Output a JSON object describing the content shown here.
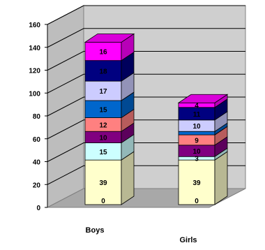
{
  "chart_data": {
    "type": "bar",
    "stacked": true,
    "three_d": true,
    "categories": [
      "Boys",
      "Girls"
    ],
    "ylim": [
      0,
      160
    ],
    "y_ticks": [
      "0",
      "20",
      "40",
      "60",
      "80",
      "100",
      "120",
      "140",
      "160"
    ],
    "grid": true,
    "legend": "none",
    "colors": [
      "#ffffcc",
      "#ccffff",
      "#800080",
      "#ff8080",
      "#0066cc",
      "#ccccff",
      "#000080",
      "#ff00ff"
    ],
    "series": [
      {
        "values": [
          0,
          0
        ],
        "labels": [
          "0",
          "0"
        ]
      },
      {
        "values": [
          39,
          39
        ],
        "labels": [
          "39",
          "39"
        ]
      },
      {
        "values": [
          15,
          3
        ],
        "labels": [
          "15",
          "3"
        ]
      },
      {
        "values": [
          10,
          10
        ],
        "labels": [
          "10",
          "10"
        ]
      },
      {
        "values": [
          12,
          9
        ],
        "labels": [
          "12",
          "9"
        ]
      },
      {
        "values": [
          15,
          3
        ],
        "labels": [
          "15",
          ""
        ]
      },
      {
        "values": [
          17,
          10
        ],
        "labels": [
          "17",
          "10"
        ]
      },
      {
        "values": [
          18,
          11
        ],
        "labels": [
          "18",
          "11"
        ]
      },
      {
        "values": [
          16,
          4
        ],
        "labels": [
          "16",
          "4"
        ]
      }
    ]
  }
}
